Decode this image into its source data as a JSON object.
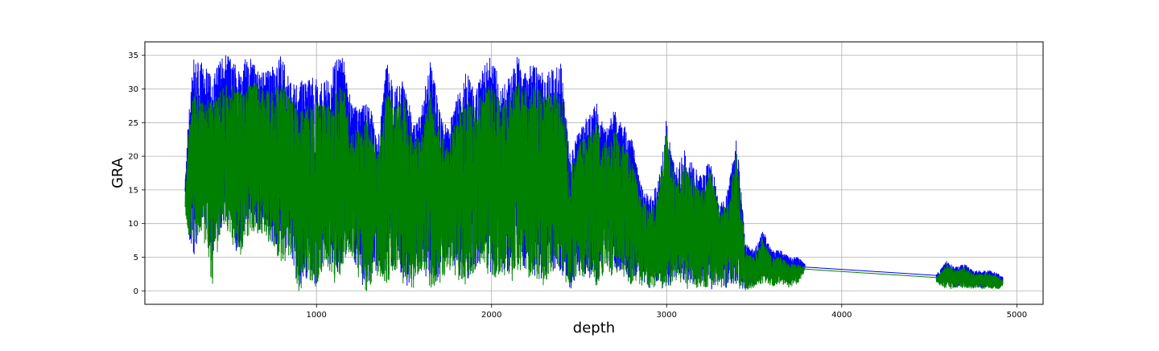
{
  "chart_data": {
    "type": "line",
    "title": "",
    "xlabel": "depth",
    "ylabel": "GRA",
    "xlim": [
      20,
      5150
    ],
    "ylim": [
      -2,
      37
    ],
    "xticks": [
      1000,
      2000,
      3000,
      4000,
      5000
    ],
    "yticks": [
      0,
      5,
      10,
      15,
      20,
      25,
      30,
      35
    ],
    "grid": true,
    "legend": "none",
    "series": [
      {
        "color": "#0000ff",
        "x": [
          250,
          270,
          300,
          350,
          400,
          450,
          500,
          550,
          600,
          650,
          700,
          750,
          800,
          850,
          900,
          950,
          1000,
          1050,
          1100,
          1150,
          1200,
          1250,
          1300,
          1350,
          1400,
          1450,
          1500,
          1550,
          1600,
          1650,
          1700,
          1750,
          1800,
          1850,
          1900,
          1950,
          2000,
          2050,
          2100,
          2150,
          2200,
          2250,
          2300,
          2350,
          2400,
          2450,
          2500,
          2550,
          2600,
          2650,
          2700,
          2750,
          2800,
          2850,
          2900,
          2950,
          3000,
          3050,
          3100,
          3150,
          3200,
          3250,
          3300,
          3350,
          3400,
          3450,
          3500,
          3550,
          3600,
          3650,
          3700,
          3750,
          3790,
          4540,
          4560,
          4600,
          4650,
          4700,
          4750,
          4800,
          4850,
          4900,
          4920
        ],
        "upper": [
          16,
          27,
          34.5,
          34,
          32,
          35,
          35,
          34,
          35,
          34,
          33,
          34,
          35,
          31,
          31,
          32,
          32,
          31,
          34,
          35,
          28,
          27,
          29,
          22,
          34,
          30,
          32,
          25,
          27,
          35,
          27,
          24,
          29,
          33,
          30,
          33,
          35,
          31,
          32,
          35,
          33,
          34,
          32,
          33,
          34,
          20,
          24,
          26,
          28,
          24,
          27,
          25,
          23,
          16,
          14,
          16,
          26,
          18,
          21,
          19,
          17,
          20,
          13,
          15,
          23,
          7,
          6,
          9,
          6,
          6,
          5,
          5,
          4,
          2.5,
          3,
          4.5,
          3.5,
          4,
          3,
          3,
          3,
          2.5,
          2
        ],
        "lower": [
          14,
          8,
          5,
          10,
          4,
          9,
          10,
          5,
          9,
          10,
          8,
          7,
          5,
          6,
          0,
          2,
          0,
          5,
          2,
          4,
          6,
          1,
          0,
          3,
          2,
          4,
          1,
          0,
          4,
          0,
          2,
          4,
          3,
          1,
          3,
          5,
          2,
          3,
          1,
          4,
          3,
          2,
          1,
          3,
          2,
          0,
          3,
          2,
          1,
          4,
          2,
          3,
          1,
          2,
          0,
          1,
          0,
          2,
          1,
          0,
          1,
          0,
          1,
          0,
          1,
          0,
          1,
          2,
          1,
          2,
          1,
          2,
          3.5,
          1.5,
          1,
          0.5,
          0.5,
          1,
          0.5,
          0.5,
          0.5,
          0.5,
          1
        ]
      },
      {
        "color": "#008000",
        "x": [
          250,
          270,
          300,
          350,
          400,
          450,
          500,
          550,
          600,
          650,
          700,
          750,
          800,
          850,
          900,
          950,
          1000,
          1050,
          1100,
          1150,
          1200,
          1250,
          1300,
          1350,
          1400,
          1450,
          1500,
          1550,
          1600,
          1650,
          1700,
          1750,
          1800,
          1850,
          1900,
          1950,
          2000,
          2050,
          2100,
          2150,
          2200,
          2250,
          2300,
          2350,
          2400,
          2450,
          2500,
          2550,
          2600,
          2650,
          2700,
          2750,
          2800,
          2850,
          2900,
          2950,
          3000,
          3050,
          3100,
          3150,
          3200,
          3250,
          3300,
          3350,
          3400,
          3450,
          3500,
          3550,
          3600,
          3650,
          3700,
          3750,
          3790,
          4540,
          4560,
          4600,
          4650,
          4700,
          4750,
          4800,
          4850,
          4900,
          4920
        ],
        "upper": [
          14,
          24,
          30,
          29,
          28,
          30,
          31,
          30,
          31,
          31,
          30,
          31,
          31,
          29,
          27,
          28,
          29,
          28,
          30,
          31,
          24,
          24,
          26,
          20,
          30,
          27,
          29,
          22,
          24,
          30,
          24,
          21,
          26,
          29,
          27,
          30,
          31,
          28,
          29,
          31,
          30,
          31,
          29,
          30,
          30,
          18,
          22,
          23,
          25,
          22,
          24,
          22,
          20,
          14,
          12,
          14,
          24,
          16,
          19,
          17,
          15,
          18,
          12,
          13,
          21,
          6,
          5,
          8,
          5,
          5,
          4,
          4,
          3.5,
          2,
          2.5,
          4,
          3,
          3.5,
          2.5,
          2.5,
          2.5,
          2,
          1.5
        ],
        "lower": [
          12,
          8,
          6,
          9,
          -0.5,
          8,
          9,
          4,
          8,
          9,
          7,
          6,
          4,
          5,
          -0.2,
          1,
          0,
          4,
          1,
          3,
          5,
          0.5,
          -0.3,
          2,
          1,
          3,
          0.5,
          -0.3,
          3,
          0,
          1,
          3,
          2,
          0.5,
          2,
          4,
          1,
          2,
          0.5,
          3,
          2,
          1,
          0.5,
          2,
          1,
          0,
          2,
          1,
          0.5,
          3,
          1,
          2,
          0.5,
          1,
          0,
          0.5,
          0,
          1,
          0.5,
          0,
          0.5,
          0,
          0.5,
          0,
          0.5,
          0,
          0.5,
          1,
          0.5,
          1,
          0.5,
          1,
          3,
          1.3,
          0.8,
          0.3,
          0.3,
          0.5,
          0.3,
          0.3,
          0.3,
          0.3,
          0.8
        ]
      }
    ]
  }
}
